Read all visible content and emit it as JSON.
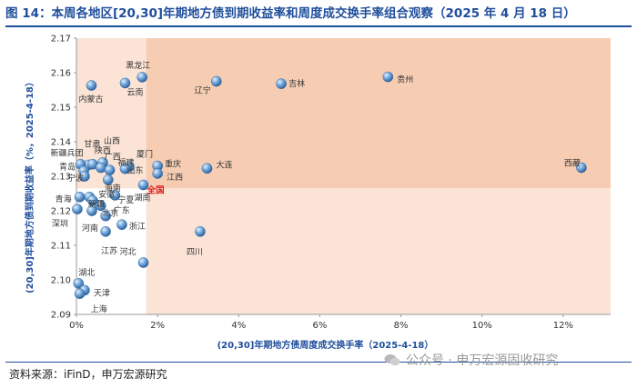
{
  "title": "图 14：本周各地区[20,30]年期地方债到期收益率和周度成交换手率组合观察（2025 年 4 月 18 日）",
  "source": "资料来源：iFinD，申万宏源研究",
  "watermark": "公众号 · 申万宏源固收研究",
  "colors": {
    "title": "#1f4e9c",
    "highlight_red": "#e02020",
    "bubble": "#6fa3d8",
    "zone_strong": "#f6cdb3",
    "zone_light": "#fbe4d6"
  },
  "chart_data": {
    "type": "scatter",
    "xlabel": "(20,30]年期地方债周度成交换手率（2025-4-18）",
    "ylabel": "(20,30]年期地方债到期收益率（%，2025-4-18）",
    "xlim": [
      0,
      0.1317
    ],
    "ylim": [
      2.09,
      2.17
    ],
    "x_ticks": [
      "0%",
      "2%",
      "4%",
      "6%",
      "8%",
      "10%",
      "12%"
    ],
    "y_ticks": [
      "2.09",
      "2.10",
      "2.11",
      "2.12",
      "2.13",
      "2.14",
      "2.15",
      "2.16",
      "2.17"
    ],
    "reference": {
      "name": "全国",
      "x": 0.0172,
      "y": 2.1265
    },
    "points": [
      {
        "name": "黑龙江",
        "x": 0.0162,
        "y": 2.1587
      },
      {
        "name": "云南",
        "x": 0.012,
        "y": 2.157
      },
      {
        "name": "内蒙古",
        "x": 0.0037,
        "y": 2.1563
      },
      {
        "name": "辽宁",
        "x": 0.0345,
        "y": 2.1575
      },
      {
        "name": "吉林",
        "x": 0.0505,
        "y": 2.1568
      },
      {
        "name": "贵州",
        "x": 0.0768,
        "y": 2.1588
      },
      {
        "name": "西藏",
        "x": 0.1245,
        "y": 2.1325
      },
      {
        "name": "大连",
        "x": 0.0322,
        "y": 2.1323
      },
      {
        "name": "重庆",
        "x": 0.02,
        "y": 2.133
      },
      {
        "name": "江西",
        "x": 0.02,
        "y": 2.1308
      },
      {
        "name": "厦门",
        "x": 0.013,
        "y": 2.1328
      },
      {
        "name": "山东",
        "x": 0.012,
        "y": 2.1322
      },
      {
        "name": "山西",
        "x": 0.0065,
        "y": 2.134
      },
      {
        "name": "甘肃",
        "x": 0.003,
        "y": 2.1333
      },
      {
        "name": "陕西",
        "x": 0.004,
        "y": 2.1335
      },
      {
        "name": "广西",
        "x": 0.006,
        "y": 2.1325
      },
      {
        "name": "福建",
        "x": 0.0082,
        "y": 2.1318
      },
      {
        "name": "新疆兵团",
        "x": 0.001,
        "y": 2.1335
      },
      {
        "name": "青岛",
        "x": 0.0018,
        "y": 2.1315
      },
      {
        "name": "宁波",
        "x": 0.002,
        "y": 2.13
      },
      {
        "name": "海南",
        "x": 0.0078,
        "y": 2.129
      },
      {
        "name": "安徽",
        "x": 0.0032,
        "y": 2.124
      },
      {
        "name": "宁夏",
        "x": 0.0095,
        "y": 2.1245
      },
      {
        "name": "湖南",
        "x": 0.0165,
        "y": 2.1275
      },
      {
        "name": "青海",
        "x": 0.0008,
        "y": 2.124
      },
      {
        "name": "新疆",
        "x": 0.004,
        "y": 2.123
      },
      {
        "name": "广东",
        "x": 0.006,
        "y": 2.1215
      },
      {
        "name": "深圳",
        "x": 0.0002,
        "y": 2.1205
      },
      {
        "name": "北京",
        "x": 0.0072,
        "y": 2.1185
      },
      {
        "name": "河南",
        "x": 0.0038,
        "y": 2.12
      },
      {
        "name": "浙江",
        "x": 0.0112,
        "y": 2.116
      },
      {
        "name": "江苏",
        "x": 0.0072,
        "y": 2.114
      },
      {
        "name": "四川",
        "x": 0.0305,
        "y": 2.114
      },
      {
        "name": "河北",
        "x": 0.0165,
        "y": 2.105
      },
      {
        "name": "湖北",
        "x": 0.0005,
        "y": 2.099
      },
      {
        "name": "天津",
        "x": 0.002,
        "y": 2.097
      },
      {
        "name": "上海",
        "x": 0.0008,
        "y": 2.096
      }
    ]
  }
}
